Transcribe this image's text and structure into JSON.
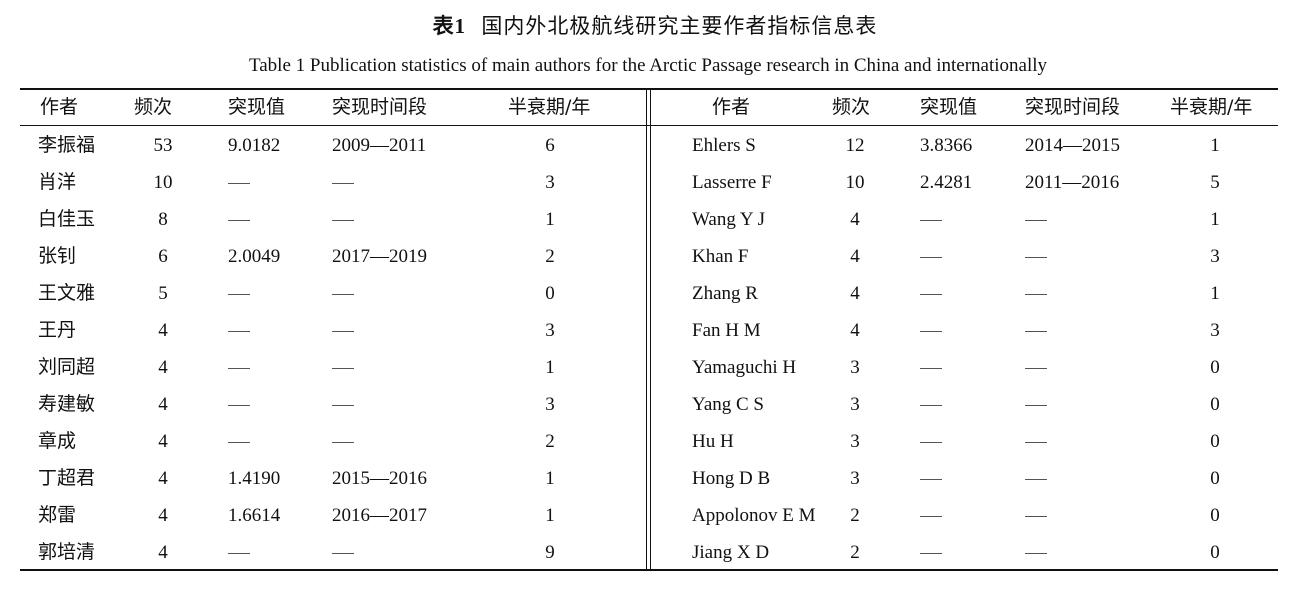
{
  "title_cn_label": "表1",
  "title_cn_text": "国内外北极航线研究主要作者指标信息表",
  "title_en": "Table 1   Publication statistics of main authors for the Arctic Passage research in China and internationally",
  "headers": [
    "作者",
    "频次",
    "突现值",
    "突现时间段",
    "半衰期/年"
  ],
  "left_rows": [
    {
      "author": "李振福",
      "freq": "53",
      "burst": "9.0182",
      "period": "2009—2011",
      "half_life": "6"
    },
    {
      "author": "肖洋",
      "freq": "10",
      "burst": "—",
      "period": "—",
      "half_life": "3"
    },
    {
      "author": "白佳玉",
      "freq": "8",
      "burst": "—",
      "period": "—",
      "half_life": "1"
    },
    {
      "author": "张钊",
      "freq": "6",
      "burst": "2.0049",
      "period": "2017—2019",
      "half_life": "2"
    },
    {
      "author": "王文雅",
      "freq": "5",
      "burst": "—",
      "period": "—",
      "half_life": "0"
    },
    {
      "author": "王丹",
      "freq": "4",
      "burst": "—",
      "period": "—",
      "half_life": "3"
    },
    {
      "author": "刘同超",
      "freq": "4",
      "burst": "—",
      "period": "—",
      "half_life": "1"
    },
    {
      "author": "寿建敏",
      "freq": "4",
      "burst": "—",
      "period": "—",
      "half_life": "3"
    },
    {
      "author": "章成",
      "freq": "4",
      "burst": "—",
      "period": "—",
      "half_life": "2"
    },
    {
      "author": "丁超君",
      "freq": "4",
      "burst": "1.4190",
      "period": "2015—2016",
      "half_life": "1"
    },
    {
      "author": "郑雷",
      "freq": "4",
      "burst": "1.6614",
      "period": "2016—2017",
      "half_life": "1"
    },
    {
      "author": "郭培清",
      "freq": "4",
      "burst": "—",
      "period": "—",
      "half_life": "9"
    }
  ],
  "right_rows": [
    {
      "author": "Ehlers S",
      "freq": "12",
      "burst": "3.8366",
      "period": "2014—2015",
      "half_life": "1"
    },
    {
      "author": "Lasserre F",
      "freq": "10",
      "burst": "2.4281",
      "period": "2011—2016",
      "half_life": "5"
    },
    {
      "author": "Wang Y J",
      "freq": "4",
      "burst": "—",
      "period": "—",
      "half_life": "1"
    },
    {
      "author": "Khan F",
      "freq": "4",
      "burst": "—",
      "period": "—",
      "half_life": "3"
    },
    {
      "author": "Zhang R",
      "freq": "4",
      "burst": "—",
      "period": "—",
      "half_life": "1"
    },
    {
      "author": "Fan H M",
      "freq": "4",
      "burst": "—",
      "period": "—",
      "half_life": "3"
    },
    {
      "author": "Yamaguchi H",
      "freq": "3",
      "burst": "—",
      "period": "—",
      "half_life": "0"
    },
    {
      "author": "Yang C S",
      "freq": "3",
      "burst": "—",
      "period": "—",
      "half_life": "0"
    },
    {
      "author": "Hu H",
      "freq": "3",
      "burst": "—",
      "period": "—",
      "half_life": "0"
    },
    {
      "author": "Hong D B",
      "freq": "3",
      "burst": "—",
      "period": "—",
      "half_life": "0"
    },
    {
      "author": "Appolonov E M",
      "freq": "2",
      "burst": "—",
      "period": "—",
      "half_life": "0"
    },
    {
      "author": "Jiang X D",
      "freq": "2",
      "burst": "—",
      "period": "—",
      "half_life": "0"
    }
  ]
}
